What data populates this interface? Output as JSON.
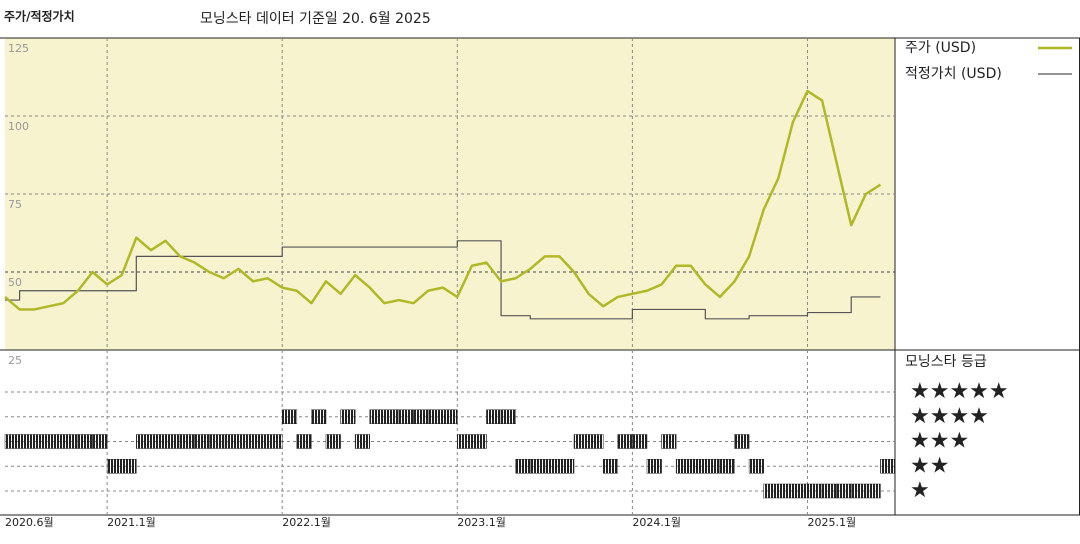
{
  "chart_data": [
    {
      "type": "line",
      "title": "주가/적정가치",
      "subtitle": "모닝스타 데이터 기준일 20. 6월 2025",
      "x": [
        "2020-06",
        "2020-07",
        "2020-08",
        "2020-09",
        "2020-10",
        "2020-11",
        "2020-12",
        "2021-01",
        "2021-02",
        "2021-03",
        "2021-04",
        "2021-05",
        "2021-06",
        "2021-07",
        "2021-08",
        "2021-09",
        "2021-10",
        "2021-11",
        "2021-12",
        "2022-01",
        "2022-02",
        "2022-03",
        "2022-04",
        "2022-05",
        "2022-06",
        "2022-07",
        "2022-08",
        "2022-09",
        "2022-10",
        "2022-11",
        "2022-12",
        "2023-01",
        "2023-02",
        "2023-03",
        "2023-04",
        "2023-05",
        "2023-06",
        "2023-07",
        "2023-08",
        "2023-09",
        "2023-10",
        "2023-11",
        "2023-12",
        "2024-01",
        "2024-02",
        "2024-03",
        "2024-04",
        "2024-05",
        "2024-06",
        "2024-07",
        "2024-08",
        "2024-09",
        "2024-10",
        "2024-11",
        "2024-12",
        "2025-01",
        "2025-02",
        "2025-03",
        "2025-04",
        "2025-05",
        "2025-06"
      ],
      "series": [
        {
          "name": "주가 (USD)",
          "color": "#b0b828",
          "values": [
            42,
            38,
            38,
            39,
            40,
            44,
            50,
            46,
            49,
            61,
            57,
            60,
            55,
            53,
            50,
            48,
            51,
            47,
            48,
            45,
            44,
            40,
            47,
            43,
            49,
            45,
            40,
            41,
            40,
            44,
            45,
            42,
            52,
            53,
            47,
            48,
            51,
            55,
            55,
            50,
            43,
            39,
            42,
            43,
            44,
            46,
            52,
            52,
            46,
            42,
            47,
            55,
            70,
            80,
            98,
            108,
            105,
            85,
            65,
            75,
            78
          ]
        },
        {
          "name": "적정가치 (USD)",
          "color": "#555555",
          "values": [
            41,
            44,
            44,
            44,
            44,
            44,
            44,
            44,
            44,
            55,
            55,
            55,
            55,
            55,
            55,
            55,
            55,
            55,
            55,
            58,
            58,
            58,
            58,
            58,
            58,
            58,
            58,
            58,
            58,
            58,
            58,
            60,
            60,
            60,
            36,
            36,
            35,
            35,
            35,
            35,
            35,
            35,
            35,
            38,
            38,
            38,
            38,
            38,
            35,
            35,
            35,
            36,
            36,
            36,
            36,
            37,
            37,
            37,
            42,
            42,
            42
          ]
        }
      ],
      "xlim": [
        "2020-06",
        "2025-07"
      ],
      "xticks": [
        {
          "value": "2020-06",
          "label": "2020.6월"
        },
        {
          "value": "2021-01",
          "label": "2021.1월"
        },
        {
          "value": "2022-01",
          "label": "2022.1월"
        },
        {
          "value": "2023-01",
          "label": "2023.1월"
        },
        {
          "value": "2024-01",
          "label": "2024.1월"
        },
        {
          "value": "2025-01",
          "label": "2025.1월"
        }
      ],
      "ylim": [
        25,
        125
      ],
      "yticks": [
        25,
        50,
        75,
        100,
        125
      ],
      "grid": true
    },
    {
      "type": "rating",
      "title": "모닝스타 등급",
      "levels": [
        "★★★★★",
        "★★★★",
        "★★★",
        "★★",
        "★"
      ],
      "values": [
        3,
        3,
        3,
        3,
        3,
        3,
        3,
        2,
        2,
        3,
        3,
        3,
        3,
        3,
        3,
        3,
        3,
        3,
        3,
        4,
        3,
        4,
        3,
        4,
        3,
        4,
        4,
        4,
        4,
        4,
        4,
        3,
        3,
        4,
        4,
        2,
        2,
        2,
        2,
        3,
        3,
        2,
        3,
        3,
        2,
        3,
        2,
        2,
        2,
        2,
        3,
        2,
        1,
        1,
        1,
        1,
        1,
        1,
        1,
        1,
        2
      ],
      "color": "#222222"
    }
  ]
}
